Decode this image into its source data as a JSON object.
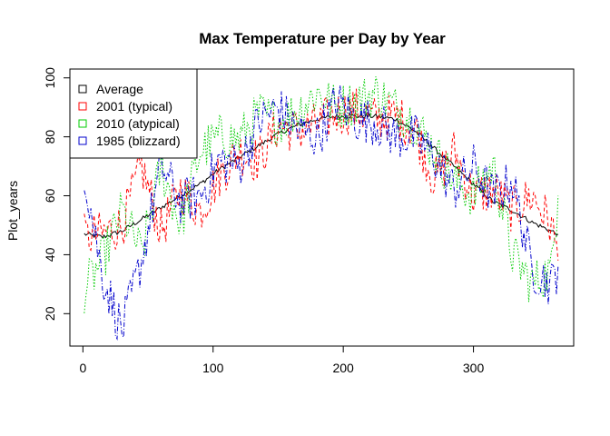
{
  "chart_data": {
    "type": "line",
    "title": "Max Temperature per Day by Year",
    "xlabel": "",
    "ylabel": "Plot_years",
    "xlim": [
      -10,
      377
    ],
    "ylim": [
      9,
      103
    ],
    "x_ticks": [
      0,
      100,
      200,
      300
    ],
    "y_ticks": [
      20,
      40,
      60,
      80,
      100
    ],
    "grid": false,
    "legend_position": "top-left",
    "x": [
      1,
      15,
      30,
      45,
      60,
      75,
      90,
      105,
      120,
      135,
      150,
      165,
      180,
      195,
      210,
      225,
      240,
      255,
      270,
      285,
      300,
      315,
      330,
      345,
      360,
      365
    ],
    "series": [
      {
        "name": "Average",
        "color": "#000000",
        "dash": "solid",
        "values": [
          47,
          46,
          48,
          52,
          56,
          60,
          64,
          69,
          73,
          77,
          81,
          84,
          86,
          87,
          87,
          87,
          86,
          82,
          76,
          70,
          64,
          58,
          55,
          51,
          48,
          47
        ]
      },
      {
        "name": "2001 (typical)",
        "color": "#ff0000",
        "dash": "dashed",
        "values": [
          46,
          47,
          50,
          70,
          48,
          62,
          55,
          67,
          75,
          72,
          84,
          82,
          84,
          88,
          89,
          86,
          87,
          83,
          65,
          75,
          60,
          62,
          55,
          60,
          50,
          38
        ]
      },
      {
        "name": "2010 (atypical)",
        "color": "#00cc00",
        "dash": "dotted",
        "values": [
          28,
          38,
          55,
          40,
          70,
          50,
          75,
          80,
          79,
          88,
          85,
          89,
          95,
          90,
          92,
          95,
          90,
          85,
          75,
          65,
          60,
          70,
          40,
          30,
          35,
          60
        ]
      },
      {
        "name": "1985 (blizzard)",
        "color": "#0000cc",
        "dash": "dashdot",
        "values": [
          68,
          33,
          14,
          38,
          70,
          58,
          60,
          72,
          70,
          85,
          90,
          82,
          80,
          92,
          86,
          85,
          80,
          80,
          73,
          62,
          70,
          60,
          65,
          35,
          30,
          36
        ]
      }
    ]
  }
}
